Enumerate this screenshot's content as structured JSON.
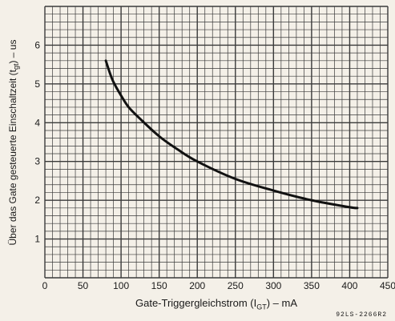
{
  "chart_data": {
    "type": "line",
    "xlabel": "Gate-Triggergleichstrom (I",
    "xlabel_sub": "GT",
    "xlabel_tail": ") – mA",
    "ylabel": "Über das Gate gesteuerte Einschaltzeit (t",
    "ylabel_sub": "gt",
    "ylabel_tail": ") – us",
    "figure_code": "92LS-2266R2",
    "xlim": [
      0,
      450
    ],
    "ylim": [
      0,
      7
    ],
    "x_ticks": [
      "0",
      "50",
      "100",
      "150",
      "200",
      "250",
      "300",
      "350",
      "400",
      "450"
    ],
    "y_ticks": [
      "1",
      "2",
      "3",
      "4",
      "5",
      "6"
    ],
    "grid": true,
    "series": [
      {
        "x": [
          80,
          85,
          90,
          100,
          110,
          125,
          150,
          175,
          200,
          250,
          300,
          350,
          400,
          410
        ],
        "y": [
          5.6,
          5.3,
          5.05,
          4.7,
          4.4,
          4.1,
          3.65,
          3.3,
          3.0,
          2.55,
          2.25,
          2.0,
          1.82,
          1.8
        ]
      }
    ]
  },
  "colors": {
    "background": "#f4f0e8",
    "grid": "#3a3a3a",
    "curve": "#111111"
  }
}
